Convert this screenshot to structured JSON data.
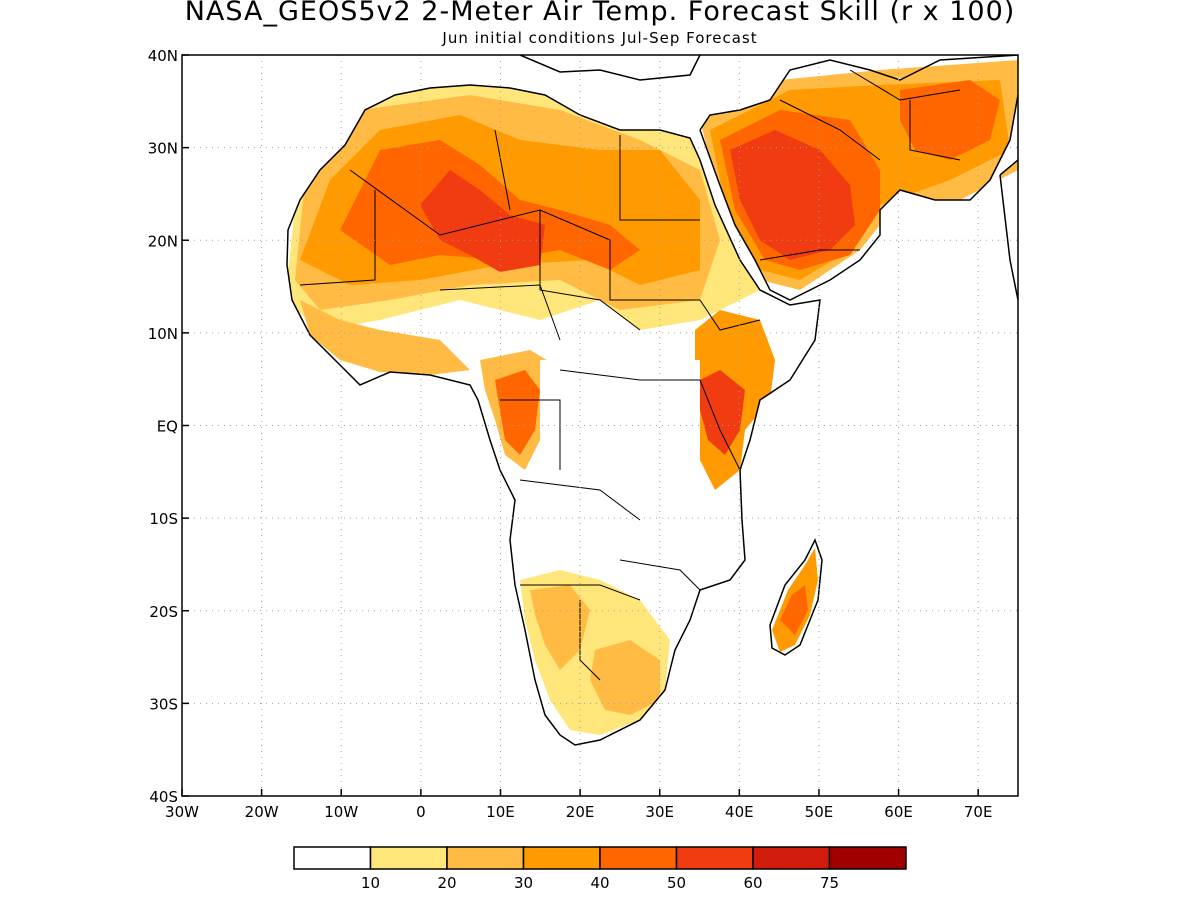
{
  "title": "NASA_GEOS5v2 2-Meter Air Temp. Forecast Skill (r x 100)",
  "subtitle": "Jun initial conditions  Jul-Sep Forecast",
  "map": {
    "region": "Africa and Middle East",
    "lon_range": [
      -30,
      75
    ],
    "lat_range": [
      -40,
      40
    ],
    "grid": true,
    "y_ticks": [
      {
        "lat": 40,
        "label": "40N"
      },
      {
        "lat": 30,
        "label": "30N"
      },
      {
        "lat": 20,
        "label": "20N"
      },
      {
        "lat": 10,
        "label": "10N"
      },
      {
        "lat": 0,
        "label": "EQ"
      },
      {
        "lat": -10,
        "label": "10S"
      },
      {
        "lat": -20,
        "label": "20S"
      },
      {
        "lat": -30,
        "label": "30S"
      },
      {
        "lat": -40,
        "label": "40S"
      }
    ],
    "x_ticks": [
      {
        "lon": -30,
        "label": "30W"
      },
      {
        "lon": -20,
        "label": "20W"
      },
      {
        "lon": -10,
        "label": "10W"
      },
      {
        "lon": 0,
        "label": "0"
      },
      {
        "lon": 10,
        "label": "10E"
      },
      {
        "lon": 20,
        "label": "20E"
      },
      {
        "lon": 30,
        "label": "30E"
      },
      {
        "lon": 40,
        "label": "40E"
      },
      {
        "lon": 50,
        "label": "50E"
      },
      {
        "lon": 60,
        "label": "60E"
      },
      {
        "lon": 70,
        "label": "70E"
      }
    ]
  },
  "colorbar": {
    "colors": [
      "#ffffff",
      "#ffe67a",
      "#ffbb44",
      "#ff9a00",
      "#ff6600",
      "#f03c10",
      "#d11c0c",
      "#a10000"
    ],
    "labels": [
      "10",
      "20",
      "30",
      "40",
      "50",
      "60",
      "75"
    ]
  },
  "skill_regions": [
    {
      "level": 1,
      "lon": -14,
      "lat": 24,
      "note": "Sahara west"
    },
    {
      "level": 5,
      "lon": 3,
      "lat": 22,
      "note": "Sahara central"
    },
    {
      "level": 6,
      "lon": 12,
      "lat": 20,
      "note": "Chad/Niger"
    },
    {
      "level": 6,
      "lon": 45,
      "lat": 24,
      "note": "Arabian Peninsula"
    },
    {
      "level": 6,
      "lon": 38,
      "lat": 1,
      "note": "East Africa highlands"
    },
    {
      "level": 5,
      "lon": 12,
      "lat": 0,
      "note": "Gabon/Cameroon"
    },
    {
      "level": 4,
      "lon": 46,
      "lat": -20,
      "note": "Madagascar"
    },
    {
      "level": 3,
      "lon": 20,
      "lat": -24,
      "note": "Southern Africa"
    }
  ]
}
